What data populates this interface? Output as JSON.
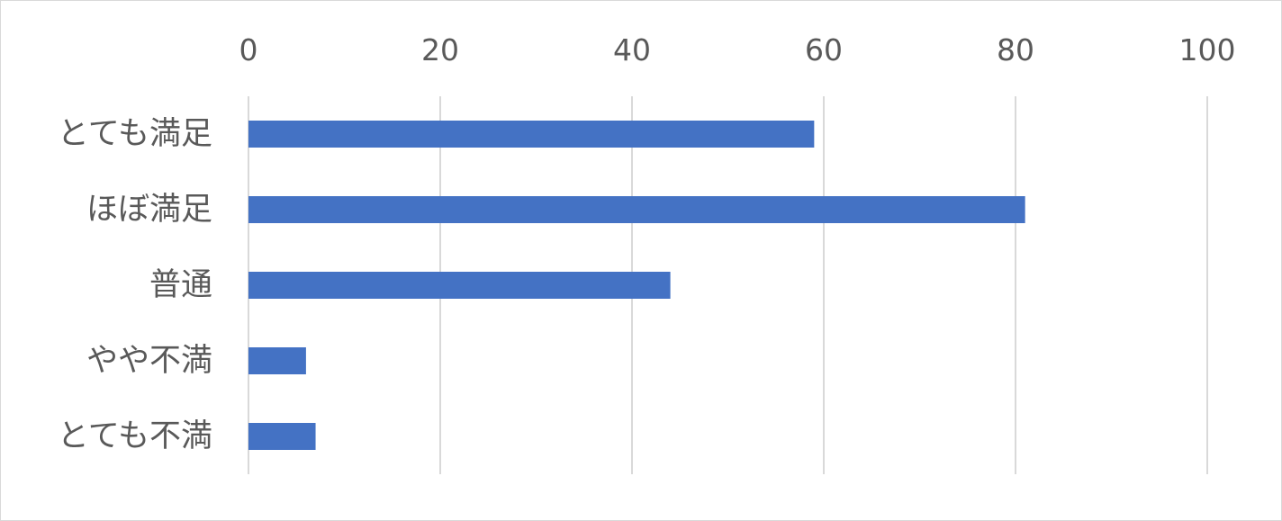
{
  "chart_data": {
    "type": "bar",
    "orientation": "horizontal",
    "title": "",
    "xlabel": "",
    "ylabel": "",
    "xlim": [
      0,
      100
    ],
    "x_ticks": [
      0,
      20,
      40,
      60,
      80,
      100
    ],
    "x_axis_position": "top",
    "grid": "vertical",
    "legend": "none",
    "categories": [
      "とても満足",
      "ほぼ満足",
      "普通",
      "やや不満",
      "とても不満"
    ],
    "values": [
      59,
      81,
      44,
      6,
      7
    ],
    "colors": {
      "bar": "#4472C4",
      "grid": "#D9D9D9",
      "text": "#595959",
      "border": "#D9D9D9"
    }
  }
}
